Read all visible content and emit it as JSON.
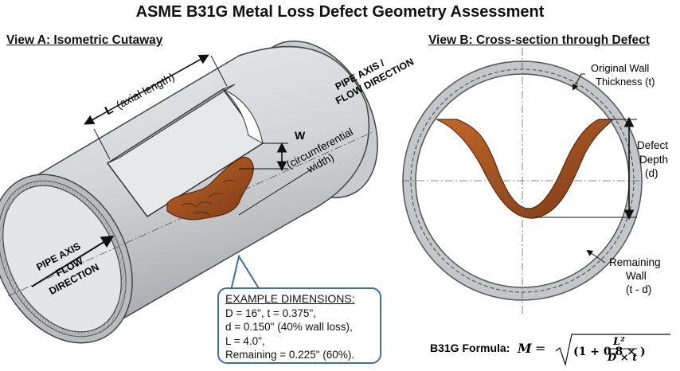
{
  "title": "ASME B31G Metal Loss Defect Geometry Assessment",
  "view_a": {
    "title": "View A: Isometric Cutaway",
    "length_symbol": "L",
    "length_label": "(axial length)",
    "width_symbol": "W",
    "width_label_1": "(circumferential",
    "width_label_2": "width)",
    "axis_right_1": "PIPE AXIS /",
    "axis_right_2": "FLOW DIRECTION",
    "axis_left_1": "PIPE AXIS",
    "axis_left_2": "FLOW",
    "axis_left_3": "DIRECTION"
  },
  "view_b": {
    "title": "View B: Cross-section through Defect",
    "original_wall_1": "Original Wall",
    "original_wall_2": "Thickness (t)",
    "defect_depth_1": "Defect",
    "defect_depth_2": "Depth",
    "defect_depth_3": "(d)",
    "remaining_1": "Remaining",
    "remaining_2": "Wall",
    "remaining_3": "(t - d)"
  },
  "example": {
    "title": "EXAMPLE DIMENSIONS:",
    "line1": "D = 16\",   t = 0.375\",",
    "line2": "d = 0.150\" (40% wall loss),",
    "line3": "L = 4.0\",",
    "line4": "Remaining = 0.225\" (60%)."
  },
  "formula": {
    "label": "B31G Formula:",
    "lhs": "M",
    "eq": "=",
    "term1": "(1 + 0.8 ×",
    "num": "L²",
    "den": "D × t",
    "close": ")"
  },
  "colors": {
    "pipe": "#cfd1d4",
    "pipe_dark": "#a9acb0",
    "corrosion": "#a8521f",
    "callout_border": "#3c6fa6"
  }
}
